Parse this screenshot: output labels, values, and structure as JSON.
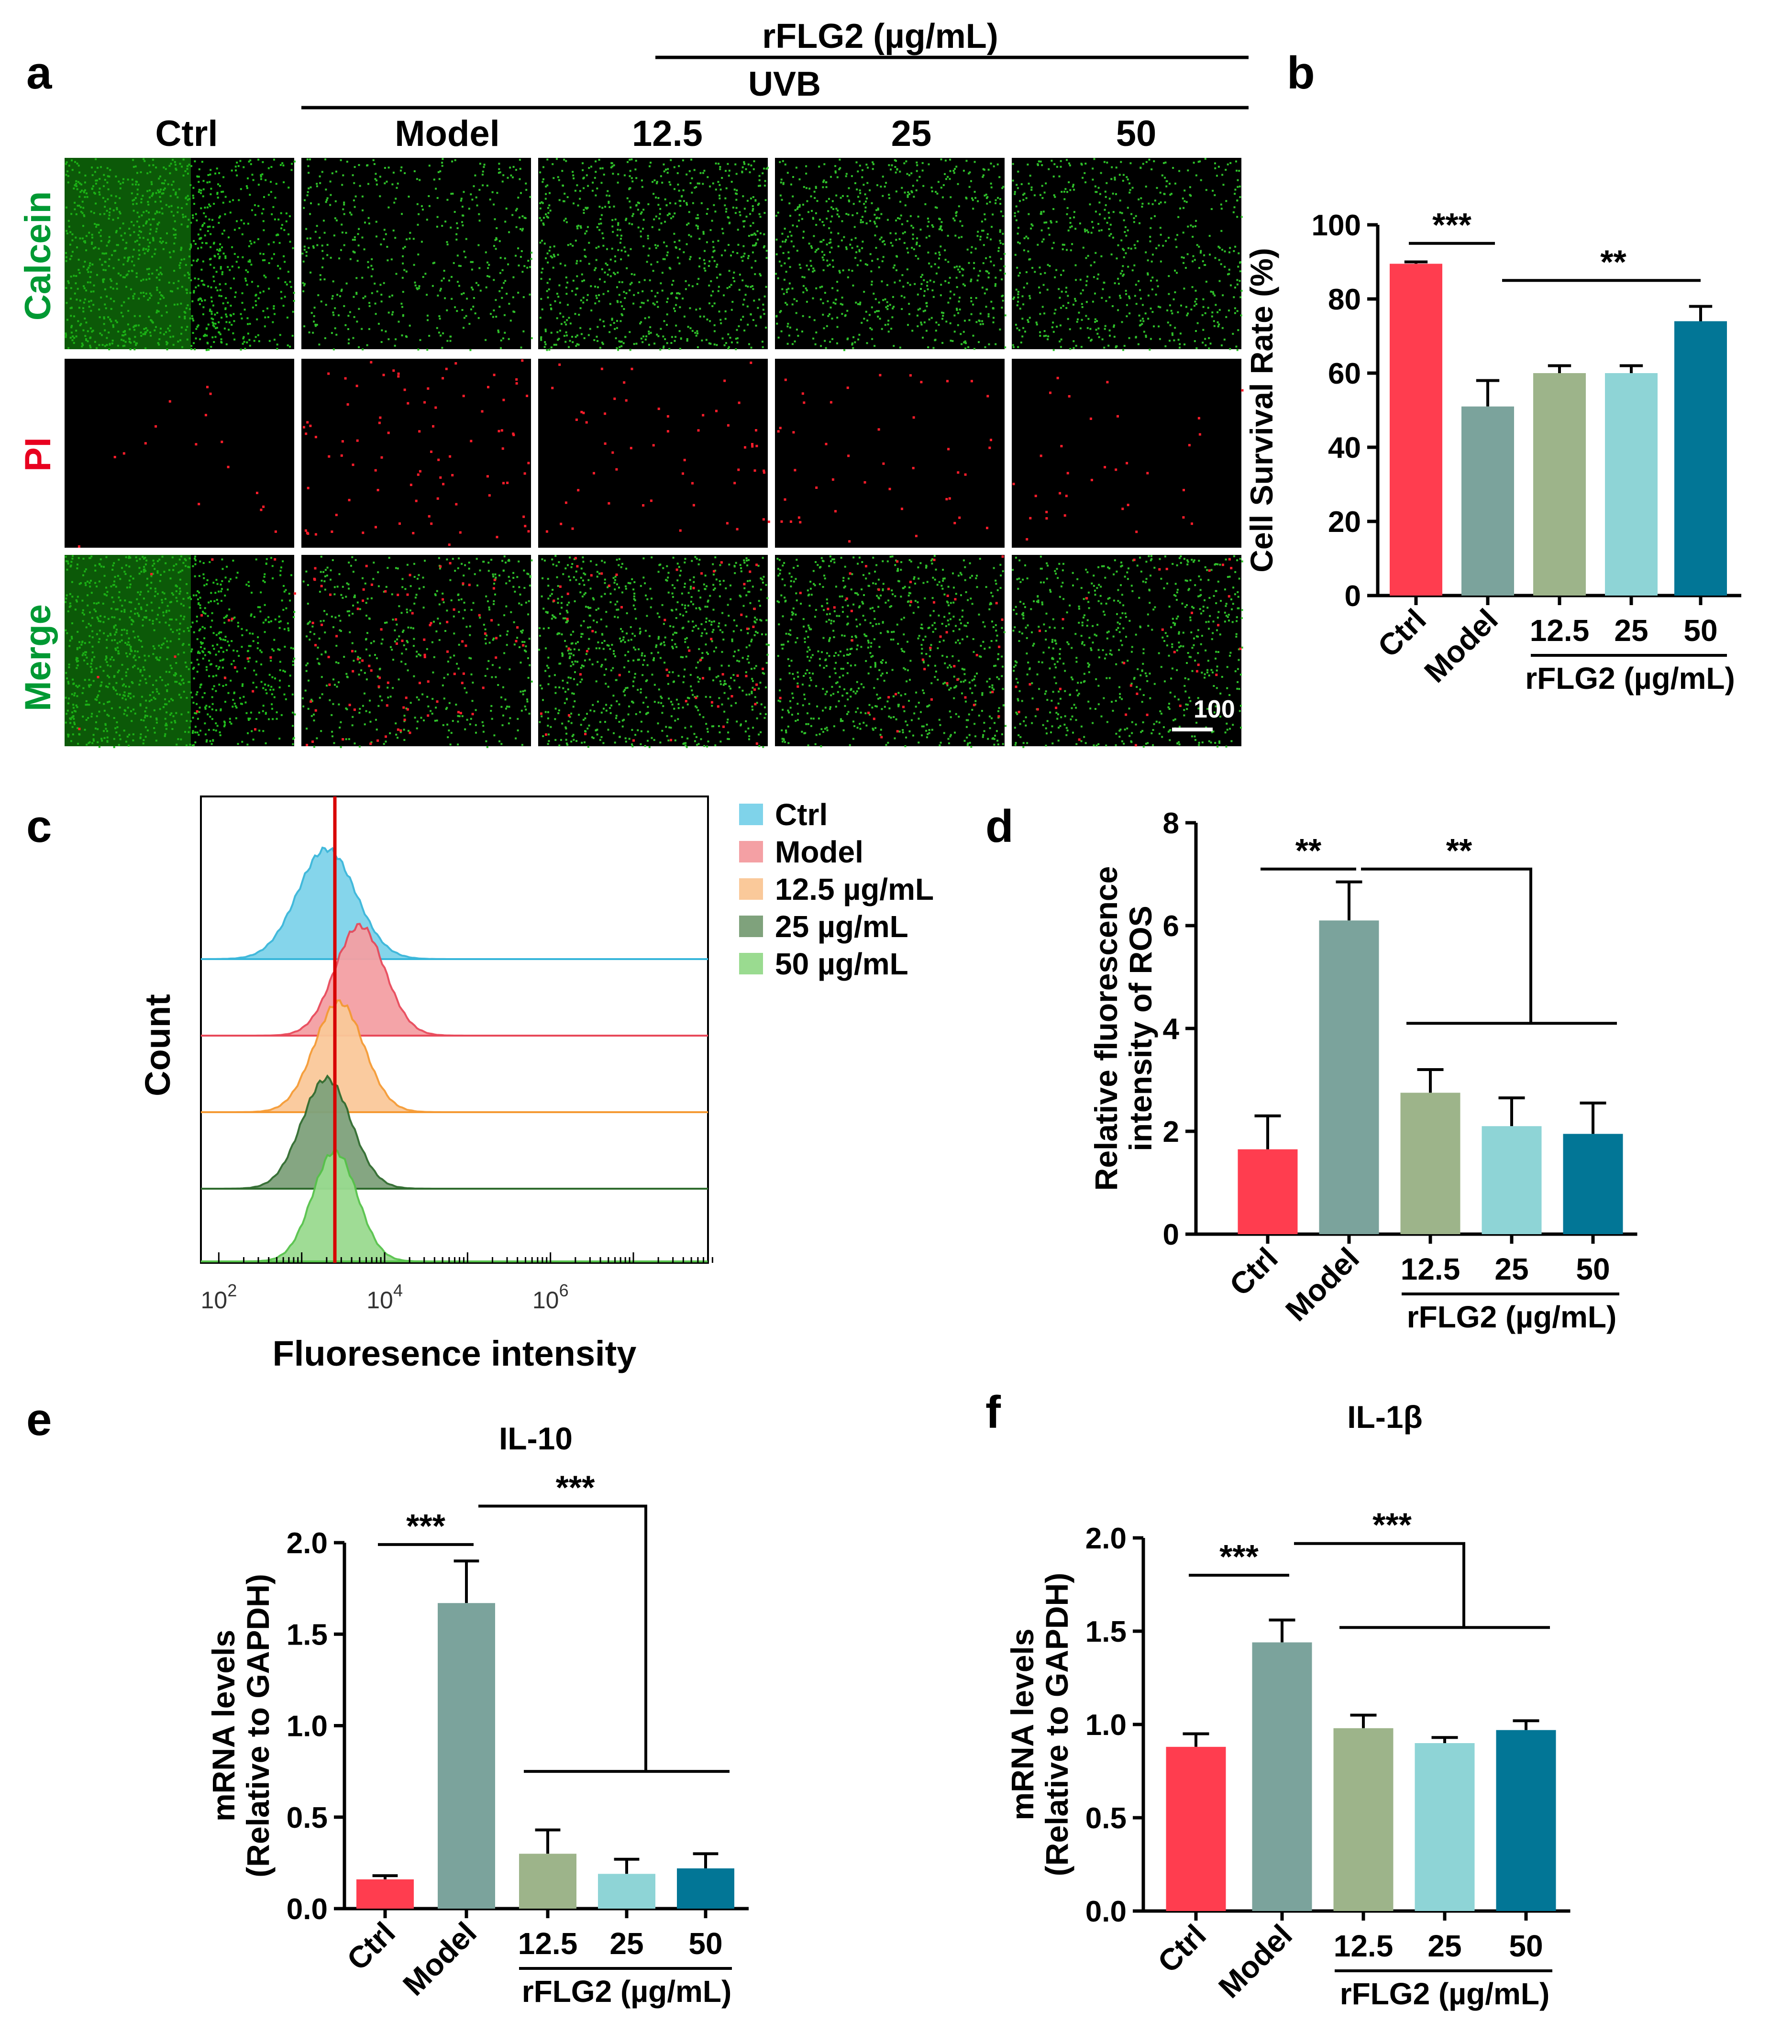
{
  "panels": {
    "a": "a",
    "b": "b",
    "c": "c",
    "d": "d",
    "e": "e",
    "f": "f"
  },
  "colors": {
    "ctrl": "#FF3D4F",
    "model": "#7BA39C",
    "c12_5": "#9DB48A",
    "c25": "#8ED4D6",
    "c50": "#027696",
    "calcein": "#009933",
    "pi": "#E8001F",
    "merge": "#009933",
    "hist_ctrl": "#7FD3EA",
    "hist_model": "#F4A0A4",
    "hist_12_5": "#FAC99A",
    "hist_25": "#7FA27C",
    "hist_50": "#9ADB90",
    "median_line": "#D80000"
  },
  "panel_a": {
    "header_top": "rFLG2 (µg/mL)",
    "header_uvb": "UVB",
    "columns": [
      "Ctrl",
      "Model",
      "12.5",
      "25",
      "50"
    ],
    "rows": [
      "Calcein",
      "PI",
      "Merge"
    ],
    "scale_bar": "100 µm",
    "green_density": [
      1.0,
      0.45,
      0.75,
      0.7,
      0.6
    ],
    "red_density": [
      0.15,
      0.8,
      0.5,
      0.4,
      0.3
    ]
  },
  "chart_data": [
    {
      "id": "b",
      "type": "bar",
      "title": "",
      "categories": [
        "Ctrl",
        "Model",
        "12.5",
        "25",
        "50"
      ],
      "values": [
        89.5,
        51,
        60,
        60,
        74
      ],
      "errors": [
        0.5,
        7,
        2,
        2,
        4
      ],
      "ylabel": "Cell Survival Rate (%)",
      "xlabel": "rFLG2 (µg/mL)",
      "ylim": [
        0,
        100
      ],
      "yticks": [
        "0",
        "20",
        "40",
        "60",
        "80",
        "100"
      ],
      "ytick_values": [
        0,
        20,
        40,
        60,
        80,
        100
      ],
      "significance": [
        {
          "label": "***",
          "from": "Ctrl",
          "to": "Model"
        },
        {
          "label": "**",
          "from": "Model",
          "to": "50"
        }
      ]
    },
    {
      "id": "c",
      "type": "area",
      "title": "",
      "xlabel": "Fluoresence  intensity",
      "ylabel": "Count",
      "xscale": "log",
      "xticks": [
        "10",
        "10",
        "10"
      ],
      "xtick_exponents": [
        "2",
        "4",
        "6"
      ],
      "legend_position": "right",
      "series": [
        {
          "name": "Ctrl",
          "peak_log10": 3.3,
          "width": 0.35
        },
        {
          "name": "Model",
          "peak_log10": 3.7,
          "width": 0.3
        },
        {
          "name": "12.5 µg/mL",
          "peak_log10": 3.45,
          "width": 0.3
        },
        {
          "name": "25 µg/mL",
          "peak_log10": 3.3,
          "width": 0.3
        },
        {
          "name": "50 µg/mL",
          "peak_log10": 3.4,
          "width": 0.27
        }
      ],
      "median_log10": 3.4
    },
    {
      "id": "d",
      "type": "bar",
      "title": "",
      "categories": [
        "Ctrl",
        "Model",
        "12.5",
        "25",
        "50"
      ],
      "values": [
        1.65,
        6.1,
        2.75,
        2.1,
        1.95
      ],
      "errors": [
        0.65,
        0.75,
        0.45,
        0.55,
        0.6
      ],
      "ylabel_lines": [
        "Relative fluorescence",
        "intensity of ROS"
      ],
      "xlabel": "rFLG2 (µg/mL)",
      "ylim": [
        0,
        8
      ],
      "yticks": [
        "0",
        "2",
        "4",
        "6",
        "8"
      ],
      "ytick_values": [
        0,
        2,
        4,
        6,
        8
      ],
      "significance": [
        {
          "label": "**",
          "from": "Ctrl",
          "to": "Model"
        },
        {
          "label": "**",
          "from": "Model",
          "to": "12.5–50"
        }
      ]
    },
    {
      "id": "e",
      "type": "bar",
      "title": "IL-10",
      "categories": [
        "Ctrl",
        "Model",
        "12.5",
        "25",
        "50"
      ],
      "values": [
        0.16,
        1.67,
        0.3,
        0.19,
        0.22
      ],
      "errors": [
        0.02,
        0.23,
        0.13,
        0.08,
        0.08
      ],
      "ylabel_lines": [
        "mRNA levels",
        "(Relative to GAPDH)"
      ],
      "xlabel": "rFLG2 (µg/mL)",
      "ylim": [
        0,
        2.0
      ],
      "yticks": [
        "0.0",
        "0.5",
        "1.0",
        "1.5",
        "2.0"
      ],
      "ytick_values": [
        0,
        0.5,
        1.0,
        1.5,
        2.0
      ],
      "significance": [
        {
          "label": "***",
          "from": "Ctrl",
          "to": "Model"
        },
        {
          "label": "***",
          "from": "Model",
          "to": "12.5–50"
        }
      ]
    },
    {
      "id": "f",
      "type": "bar",
      "title": "IL-1β",
      "categories": [
        "Ctrl",
        "Model",
        "12.5",
        "25",
        "50"
      ],
      "values": [
        0.88,
        1.44,
        0.98,
        0.9,
        0.97
      ],
      "errors": [
        0.07,
        0.12,
        0.07,
        0.03,
        0.05
      ],
      "ylabel_lines": [
        "mRNA levels",
        "(Relative to GAPDH)"
      ],
      "xlabel": "rFLG2 (µg/mL)",
      "ylim": [
        0,
        2.0
      ],
      "yticks": [
        "0.0",
        "0.5",
        "1.0",
        "1.5",
        "2.0"
      ],
      "ytick_values": [
        0,
        0.5,
        1.0,
        1.5,
        2.0
      ],
      "significance": [
        {
          "label": "***",
          "from": "Ctrl",
          "to": "Model"
        },
        {
          "label": "***",
          "from": "Model",
          "to": "12.5–50"
        }
      ]
    }
  ]
}
